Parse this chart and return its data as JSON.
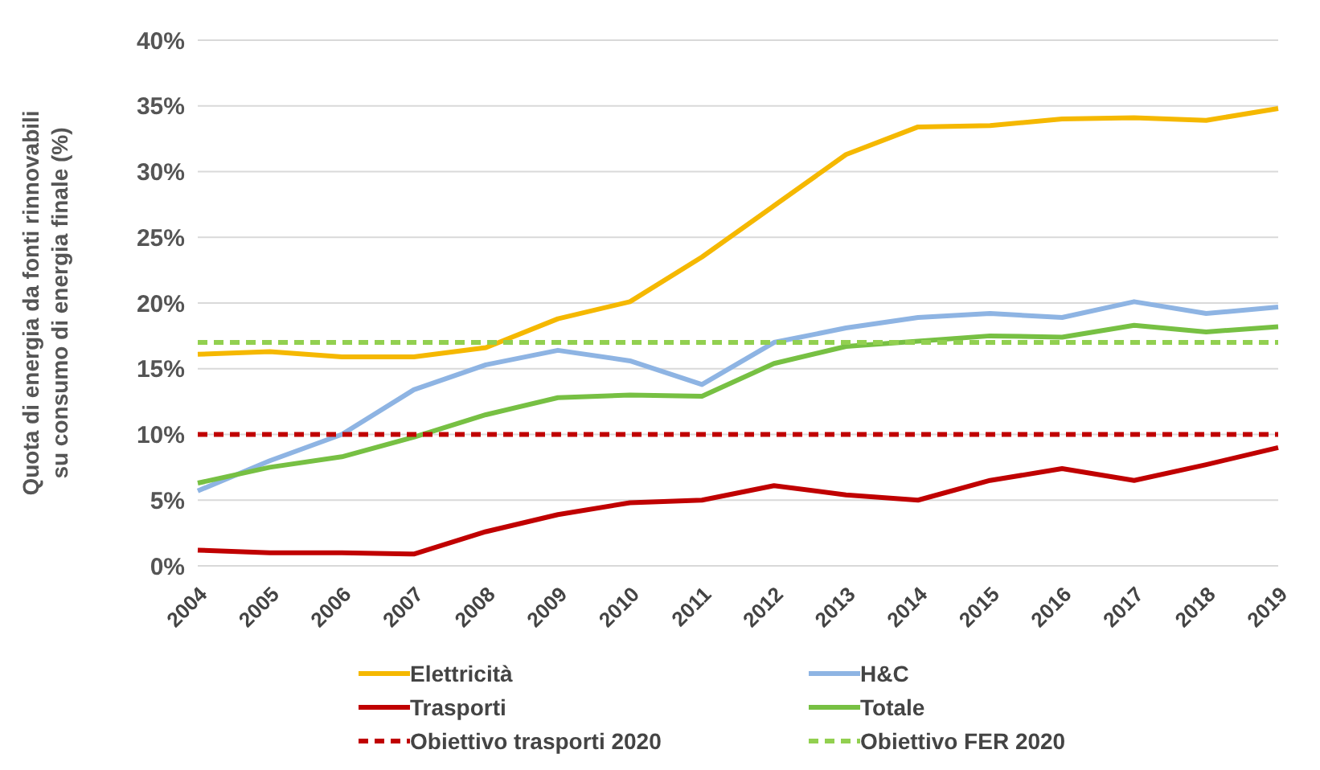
{
  "chart_data": {
    "type": "line",
    "ylabel": "Quota di energia da fonti rinnovabili su consumo di energia finale (%)",
    "categories": [
      "2004",
      "2005",
      "2006",
      "2007",
      "2008",
      "2009",
      "2010",
      "2011",
      "2012",
      "2013",
      "2014",
      "2015",
      "2016",
      "2017",
      "2018",
      "2019"
    ],
    "series": [
      {
        "name": "Elettricità",
        "color": "#f5b800",
        "values": [
          16.1,
          16.3,
          15.9,
          15.9,
          16.6,
          18.8,
          20.1,
          23.5,
          27.4,
          31.3,
          33.4,
          33.5,
          34.0,
          34.1,
          33.9,
          34.8
        ]
      },
      {
        "name": "H&C",
        "color": "#8eb4e3",
        "values": [
          5.7,
          8.0,
          10.0,
          13.4,
          15.3,
          16.4,
          15.6,
          13.8,
          17.0,
          18.1,
          18.9,
          19.2,
          18.9,
          20.1,
          19.2,
          19.7
        ]
      },
      {
        "name": "Trasporti",
        "color": "#c00000",
        "values": [
          1.2,
          1.0,
          1.0,
          0.9,
          2.6,
          3.9,
          4.8,
          5.0,
          6.1,
          5.4,
          5.0,
          6.5,
          7.4,
          6.5,
          7.7,
          9.0
        ]
      },
      {
        "name": "Totale",
        "color": "#77c043",
        "values": [
          6.3,
          7.5,
          8.3,
          9.8,
          11.5,
          12.8,
          13.0,
          12.9,
          15.4,
          16.7,
          17.1,
          17.5,
          17.4,
          18.3,
          17.8,
          18.2
        ]
      },
      {
        "name": "Obiettivo trasporti 2020",
        "color": "#c00000",
        "line_style": "dashed",
        "values": [
          10,
          10,
          10,
          10,
          10,
          10,
          10,
          10,
          10,
          10,
          10,
          10,
          10,
          10,
          10,
          10
        ]
      },
      {
        "name": "Obiettivo FER 2020",
        "color": "#92d050",
        "line_style": "dashed",
        "values": [
          17,
          17,
          17,
          17,
          17,
          17,
          17,
          17,
          17,
          17,
          17,
          17,
          17,
          17,
          17,
          17
        ]
      }
    ],
    "ylim": [
      0,
      40
    ],
    "yticks": [
      {
        "value": 0,
        "label": "0%"
      },
      {
        "value": 5,
        "label": "5%"
      },
      {
        "value": 10,
        "label": "10%"
      },
      {
        "value": 15,
        "label": "15%"
      },
      {
        "value": 20,
        "label": "20%"
      },
      {
        "value": 25,
        "label": "25%"
      },
      {
        "value": 30,
        "label": "30%"
      },
      {
        "value": 35,
        "label": "35%"
      },
      {
        "value": 40,
        "label": "40%"
      }
    ],
    "grid": "y",
    "legend": "bottom",
    "marker": "none"
  }
}
